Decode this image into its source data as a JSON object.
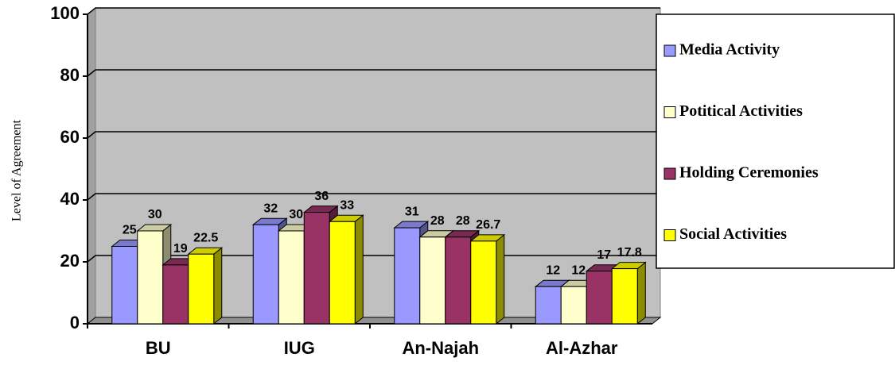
{
  "chart_data": {
    "type": "bar3d",
    "y_label": "Level of Agreement",
    "categories": [
      "BU",
      "IUG",
      "An-Najah",
      "Al-Azhar"
    ],
    "series": [
      {
        "name": "Media Activity",
        "color": "#9999ff",
        "values": [
          25,
          32,
          31,
          12
        ]
      },
      {
        "name": "Potitical Activities",
        "color": "#ffffcc",
        "values": [
          30,
          30,
          28,
          12
        ]
      },
      {
        "name": "Holding Ceremonies",
        "color": "#993366",
        "values": [
          19,
          36,
          28,
          17
        ]
      },
      {
        "name": "Social Activities",
        "color": "#ffff00",
        "values": [
          22.5,
          33,
          26.7,
          17.8
        ]
      }
    ],
    "ylim": [
      0,
      100
    ],
    "yticks": [
      0,
      20,
      40,
      60,
      80,
      100
    ],
    "grid": true,
    "legend": "right"
  }
}
